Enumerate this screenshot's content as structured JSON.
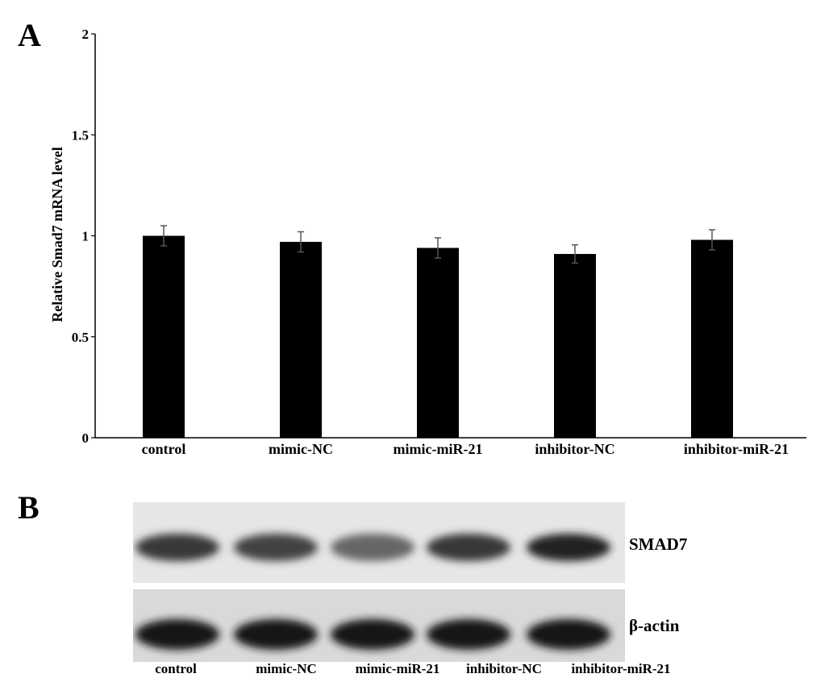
{
  "panel_a": {
    "letter": "A"
  },
  "panel_b": {
    "letter": "B"
  },
  "chart_data": {
    "type": "bar",
    "title": "",
    "xlabel": "",
    "ylabel": "Relative Smad7 mRNA level",
    "ylim": [
      0,
      2
    ],
    "yticks": [
      0,
      0.5,
      1,
      1.5,
      2
    ],
    "ytick_labels": [
      "0",
      "0.5",
      "1",
      "1.5",
      "2"
    ],
    "categories": [
      "control",
      "mimic-NC",
      "mimic-miR-21",
      "inhibitor-NC",
      "inhibitor-miR-21"
    ],
    "values": [
      1.0,
      0.97,
      0.94,
      0.91,
      0.98
    ],
    "errors": [
      0.05,
      0.05,
      0.05,
      0.045,
      0.05
    ],
    "bar_color": "#000000",
    "grid": false
  },
  "blot": {
    "rows": [
      {
        "label": "SMAD7",
        "intensities": [
          0.85,
          0.8,
          0.65,
          0.85,
          0.95
        ]
      },
      {
        "label": "β-actin",
        "intensities": [
          1.0,
          1.0,
          1.0,
          1.0,
          1.0
        ]
      }
    ],
    "lanes": [
      "control",
      "mimic-NC",
      "mimic-miR-21",
      "inhibitor-NC",
      "inhibitor-miR-21"
    ]
  }
}
